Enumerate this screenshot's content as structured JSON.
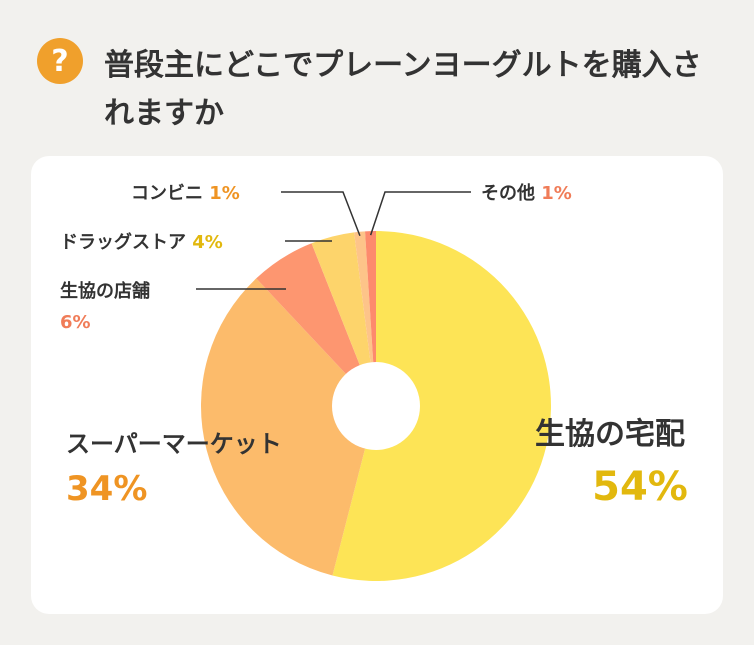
{
  "header": {
    "badge": "?",
    "title": "普段主にどこでプレーンヨーグルトを購入されますか"
  },
  "colors": {
    "badge": "#f0a02c",
    "background": "#f2f1ee",
    "card": "#ffffff",
    "leader": "#333333"
  },
  "chart_data": {
    "type": "pie",
    "variant": "donut",
    "slices": [
      {
        "label": "生協の宅配",
        "value": 54,
        "value_label": "54%",
        "color": "#fde456",
        "label_color": "#e2b80e"
      },
      {
        "label": "スーパーマーケット",
        "value": 34,
        "value_label": "34%",
        "color": "#fcbb6b",
        "label_color": "#ef9423"
      },
      {
        "label": "生協の店舗",
        "value": 6,
        "value_label": "6%",
        "color": "#fd9670",
        "label_color": "#f07c58"
      },
      {
        "label": "ドラッグストア",
        "value": 4,
        "value_label": "4%",
        "color": "#fdd46b",
        "label_color": "#e2b80e"
      },
      {
        "label": "コンビニ",
        "value": 1,
        "value_label": "1%",
        "color": "#fdc489",
        "label_color": "#ef9423"
      },
      {
        "label": "その他",
        "value": 1,
        "value_label": "1%",
        "color": "#fd8a6d",
        "label_color": "#f07c58"
      }
    ]
  }
}
